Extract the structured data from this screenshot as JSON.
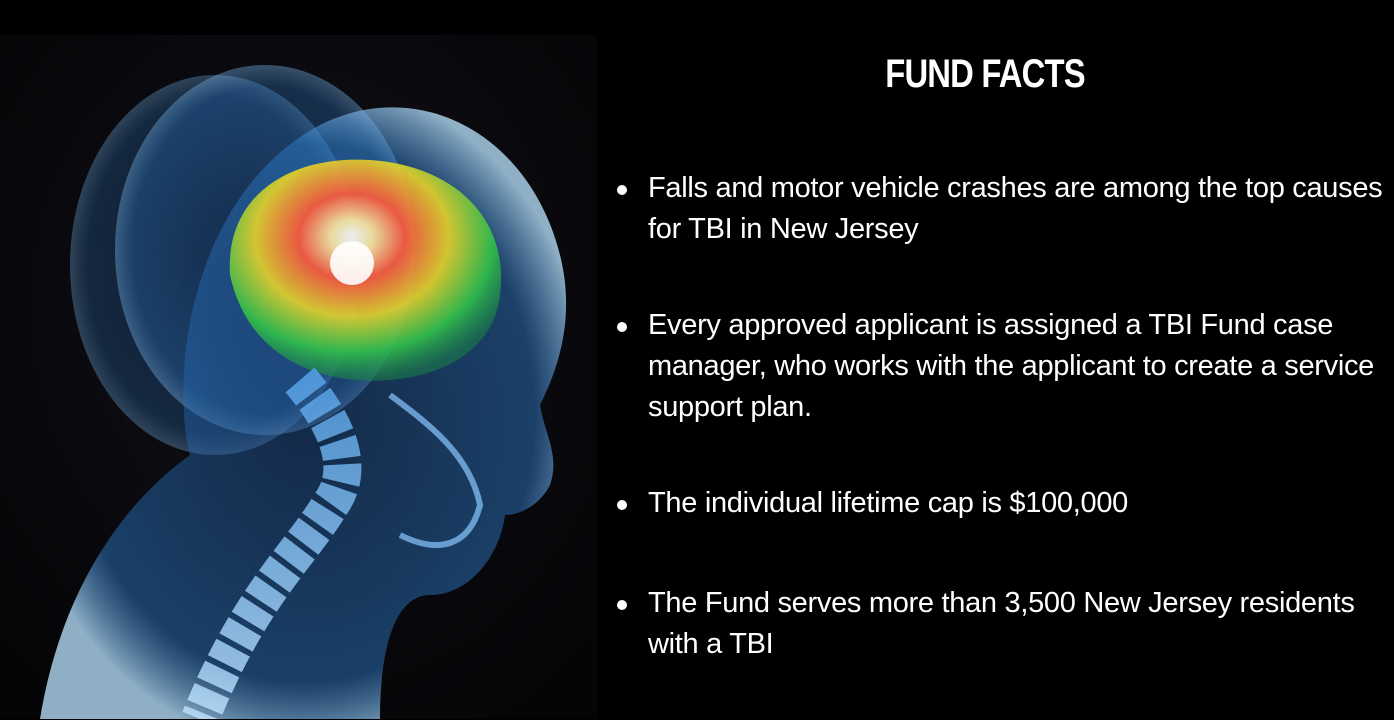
{
  "header": {
    "title": "FUND FACTS"
  },
  "facts": [
    "Falls and motor vehicle crashes are among the top causes for TBI in New Jersey",
    "Every approved applicant is assigned a TBI Fund case manager, who works with the applicant to create a service support plan.",
    "The individual lifetime cap is $100,000",
    "The Fund serves more than 3,500 New Jersey residents with a TBI"
  ]
}
